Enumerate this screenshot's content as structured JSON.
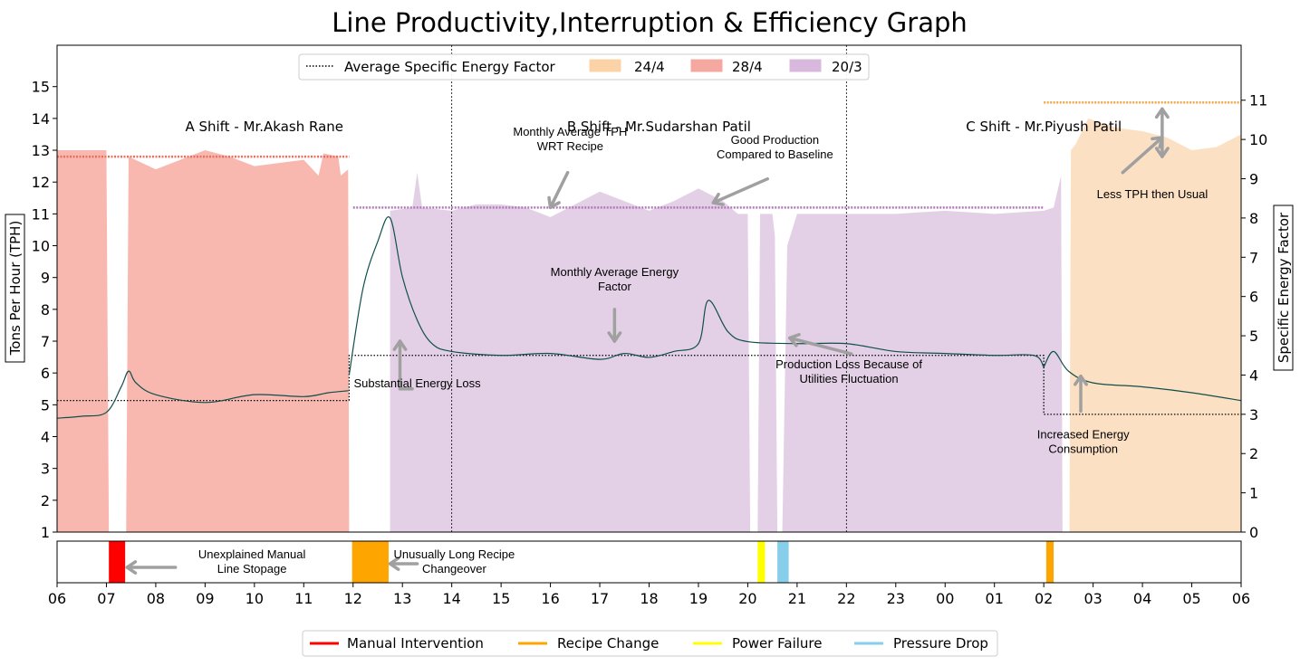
{
  "chart_data": {
    "type": "area",
    "title": "Line Productivity,Interruption & Efficiency Graph",
    "ylabel_left": "Tons Per Hour (TPH)",
    "ylabel_right": "Specific Energy Factor",
    "x_ticks": [
      "06",
      "07",
      "08",
      "09",
      "10",
      "11",
      "12",
      "13",
      "14",
      "15",
      "16",
      "17",
      "18",
      "19",
      "20",
      "21",
      "22",
      "23",
      "00",
      "01",
      "02",
      "03",
      "04",
      "05",
      "06"
    ],
    "y_left_ticks": [
      1,
      2,
      3,
      4,
      5,
      6,
      7,
      8,
      9,
      10,
      11,
      12,
      13,
      14,
      15
    ],
    "y_left_range": [
      1,
      16.3
    ],
    "y_right_ticks": [
      0,
      1,
      2,
      3,
      4,
      5,
      6,
      7,
      8,
      9,
      10,
      11
    ],
    "y_right_range": [
      0,
      12.4
    ],
    "x_range_hours": [
      0,
      24
    ],
    "shift_lines_hours": [
      8,
      16
    ],
    "shifts": [
      {
        "label": "A Shift - Mr.Akash Rane",
        "x": 4.2
      },
      {
        "label": "B Shift - Mr.Sudarshan Patil",
        "x": 12.2
      },
      {
        "label": "C Shift - Mr.Piyush Patil",
        "x": 20.0
      }
    ],
    "areas": [
      {
        "name": "28/4",
        "color": "#f8b8b0",
        "points": [
          [
            0,
            1
          ],
          [
            0,
            13.0
          ],
          [
            1,
            13.0
          ],
          [
            1.05,
            1
          ],
          [
            1.4,
            1
          ],
          [
            1.45,
            12.8
          ],
          [
            2,
            12.4
          ],
          [
            2.5,
            12.7
          ],
          [
            3,
            13.0
          ],
          [
            3.5,
            12.8
          ],
          [
            4,
            12.5
          ],
          [
            5,
            12.7
          ],
          [
            5.3,
            12.2
          ],
          [
            5.4,
            12.9
          ],
          [
            5.7,
            12.8
          ],
          [
            5.75,
            12.2
          ],
          [
            5.9,
            12.4
          ],
          [
            5.92,
            1
          ]
        ]
      },
      {
        "name": "20/3",
        "color": "#e4d0e6",
        "points": [
          [
            6.75,
            1
          ],
          [
            6.75,
            11.1
          ],
          [
            7.2,
            11.2
          ],
          [
            7.3,
            12.3
          ],
          [
            7.4,
            11.2
          ],
          [
            8,
            11.1
          ],
          [
            8.5,
            11.3
          ],
          [
            9,
            11.3
          ],
          [
            9.5,
            11.2
          ],
          [
            10,
            10.9
          ],
          [
            10.5,
            11.3
          ],
          [
            11,
            11.7
          ],
          [
            11.5,
            11.4
          ],
          [
            12,
            11.1
          ],
          [
            12.5,
            11.4
          ],
          [
            13,
            11.8
          ],
          [
            13.5,
            11.4
          ],
          [
            13.8,
            11.0
          ],
          [
            14,
            11.0
          ],
          [
            14.05,
            1
          ],
          [
            14.2,
            1
          ],
          [
            14.25,
            11.0
          ],
          [
            14.5,
            11.0
          ],
          [
            14.55,
            10.3
          ],
          [
            14.6,
            1
          ],
          [
            14.7,
            1
          ],
          [
            14.8,
            10.0
          ],
          [
            15,
            11.0
          ],
          [
            16,
            11.0
          ],
          [
            17,
            11.0
          ],
          [
            18,
            11.1
          ],
          [
            19,
            11.0
          ],
          [
            20,
            11.1
          ],
          [
            20.2,
            11.2
          ],
          [
            20.35,
            12.2
          ],
          [
            20.38,
            1
          ]
        ]
      },
      {
        "name": "24/4",
        "color": "#fce0c4",
        "points": [
          [
            20.52,
            1
          ],
          [
            20.55,
            13.0
          ],
          [
            20.65,
            13.2
          ],
          [
            20.9,
            14.0
          ],
          [
            21.5,
            13.7
          ],
          [
            22,
            13.6
          ],
          [
            22.5,
            13.4
          ],
          [
            23,
            13.0
          ],
          [
            23.5,
            13.1
          ],
          [
            24,
            13.5
          ],
          [
            24,
            1
          ]
        ]
      }
    ],
    "energy_factor_segments": [
      {
        "name": "28/4",
        "points": [
          [
            0,
            2.9
          ],
          [
            0.5,
            2.95
          ],
          [
            1.0,
            3.05
          ],
          [
            1.3,
            3.7
          ],
          [
            1.45,
            4.1
          ],
          [
            1.6,
            3.8
          ],
          [
            2,
            3.5
          ],
          [
            3,
            3.3
          ],
          [
            4,
            3.5
          ],
          [
            5,
            3.45
          ],
          [
            5.5,
            3.55
          ],
          [
            5.9,
            3.6
          ]
        ]
      },
      {
        "name": "20/3",
        "points": [
          [
            5.92,
            4.0
          ],
          [
            6.2,
            6.2
          ],
          [
            6.5,
            7.4
          ],
          [
            6.75,
            8.0
          ],
          [
            7.0,
            6.5
          ],
          [
            7.3,
            5.4
          ],
          [
            7.6,
            4.8
          ],
          [
            8,
            4.6
          ],
          [
            9,
            4.5
          ],
          [
            10,
            4.55
          ],
          [
            11,
            4.4
          ],
          [
            11.5,
            4.55
          ],
          [
            12,
            4.45
          ],
          [
            12.5,
            4.6
          ],
          [
            13,
            4.8
          ],
          [
            13.2,
            5.9
          ],
          [
            13.6,
            5.1
          ],
          [
            14,
            4.85
          ],
          [
            15,
            4.8
          ],
          [
            16,
            4.8
          ],
          [
            17,
            4.6
          ],
          [
            18,
            4.55
          ],
          [
            19,
            4.5
          ],
          [
            19.8,
            4.5
          ],
          [
            20.0,
            4.2
          ]
        ]
      },
      {
        "name": "24/4",
        "points": [
          [
            20.0,
            4.2
          ],
          [
            20.2,
            4.6
          ],
          [
            20.5,
            4.1
          ],
          [
            21,
            3.8
          ],
          [
            22,
            3.7
          ],
          [
            23,
            3.55
          ],
          [
            24,
            3.35
          ]
        ]
      }
    ],
    "avg_energy_segments": [
      {
        "points": [
          [
            0,
            3.35
          ],
          [
            5.92,
            3.35
          ]
        ]
      },
      {
        "points": [
          [
            5.92,
            3.35
          ],
          [
            5.92,
            4.5
          ],
          [
            20.0,
            4.5
          ],
          [
            20.0,
            3.0
          ],
          [
            24,
            3.0
          ]
        ]
      }
    ],
    "tph_avg_lines": [
      {
        "color": "#e87060",
        "y": 12.8,
        "x0": 0,
        "x1": 5.92
      },
      {
        "color": "#b07ab8",
        "y": 11.2,
        "x0": 6.0,
        "x1": 20.0
      },
      {
        "color": "#f4a646",
        "y": 14.5,
        "x0": 20.0,
        "x1": 24
      }
    ],
    "interruptions": [
      {
        "type": "Manual Intervention",
        "color": "#ff0000",
        "x0": 1.05,
        "x1": 1.38
      },
      {
        "type": "Recipe Change",
        "color": "#ffa500",
        "x0": 5.98,
        "x1": 6.72
      },
      {
        "type": "Power Failure",
        "color": "#ffff00",
        "x0": 14.2,
        "x1": 14.35
      },
      {
        "type": "Pressure Drop",
        "color": "#87ceeb",
        "x0": 14.6,
        "x1": 14.83
      },
      {
        "type": "Recipe Change",
        "color": "#ffa500",
        "x0": 20.05,
        "x1": 20.2
      }
    ],
    "legend_top": [
      {
        "label": "Average Specific Energy Factor",
        "kind": "dotted",
        "color": "#000000"
      },
      {
        "label": "24/4",
        "kind": "patch",
        "color": "#fcd3a6"
      },
      {
        "label": "28/4",
        "kind": "patch",
        "color": "#f4a8a0"
      },
      {
        "label": "20/3",
        "kind": "patch",
        "color": "#d8b8dc"
      }
    ],
    "legend_bottom": [
      {
        "label": "Manual Intervention",
        "color": "#ff0000"
      },
      {
        "label": "Recipe Change",
        "color": "#ffa500"
      },
      {
        "label": "Power Failure",
        "color": "#ffff00"
      },
      {
        "label": "Pressure Drop",
        "color": "#87ceeb"
      }
    ],
    "annotations": [
      {
        "lines": [
          "Monthly Average TPH",
          "WRT Recipe"
        ],
        "x": 10.4,
        "y": 13.45
      },
      {
        "lines": [
          "Good Production",
          "Compared to Baseline"
        ],
        "x": 14.55,
        "y": 13.2
      },
      {
        "lines": [
          "Less TPH then Usual"
        ],
        "x": 22.2,
        "y": 11.5
      },
      {
        "lines": [
          "Monthly Average Energy",
          "Factor"
        ],
        "x": 11.3,
        "y": 9.05
      },
      {
        "lines": [
          "Substantial Energy Loss"
        ],
        "x": 7.3,
        "y": 5.55
      },
      {
        "lines": [
          "Production Loss Because of",
          "Utilities Fluctuation"
        ],
        "x": 16.05,
        "y": 6.15
      },
      {
        "lines": [
          "Increased Energy",
          "Consumption"
        ],
        "x": 20.8,
        "y": 3.95
      }
    ],
    "bottom_annotations": [
      {
        "lines": [
          "Unexplained Manual",
          "Line Stopage"
        ],
        "x": 3.95
      },
      {
        "lines": [
          "Unusually Long Recipe",
          "Changeover"
        ],
        "x": 8.05
      }
    ]
  }
}
